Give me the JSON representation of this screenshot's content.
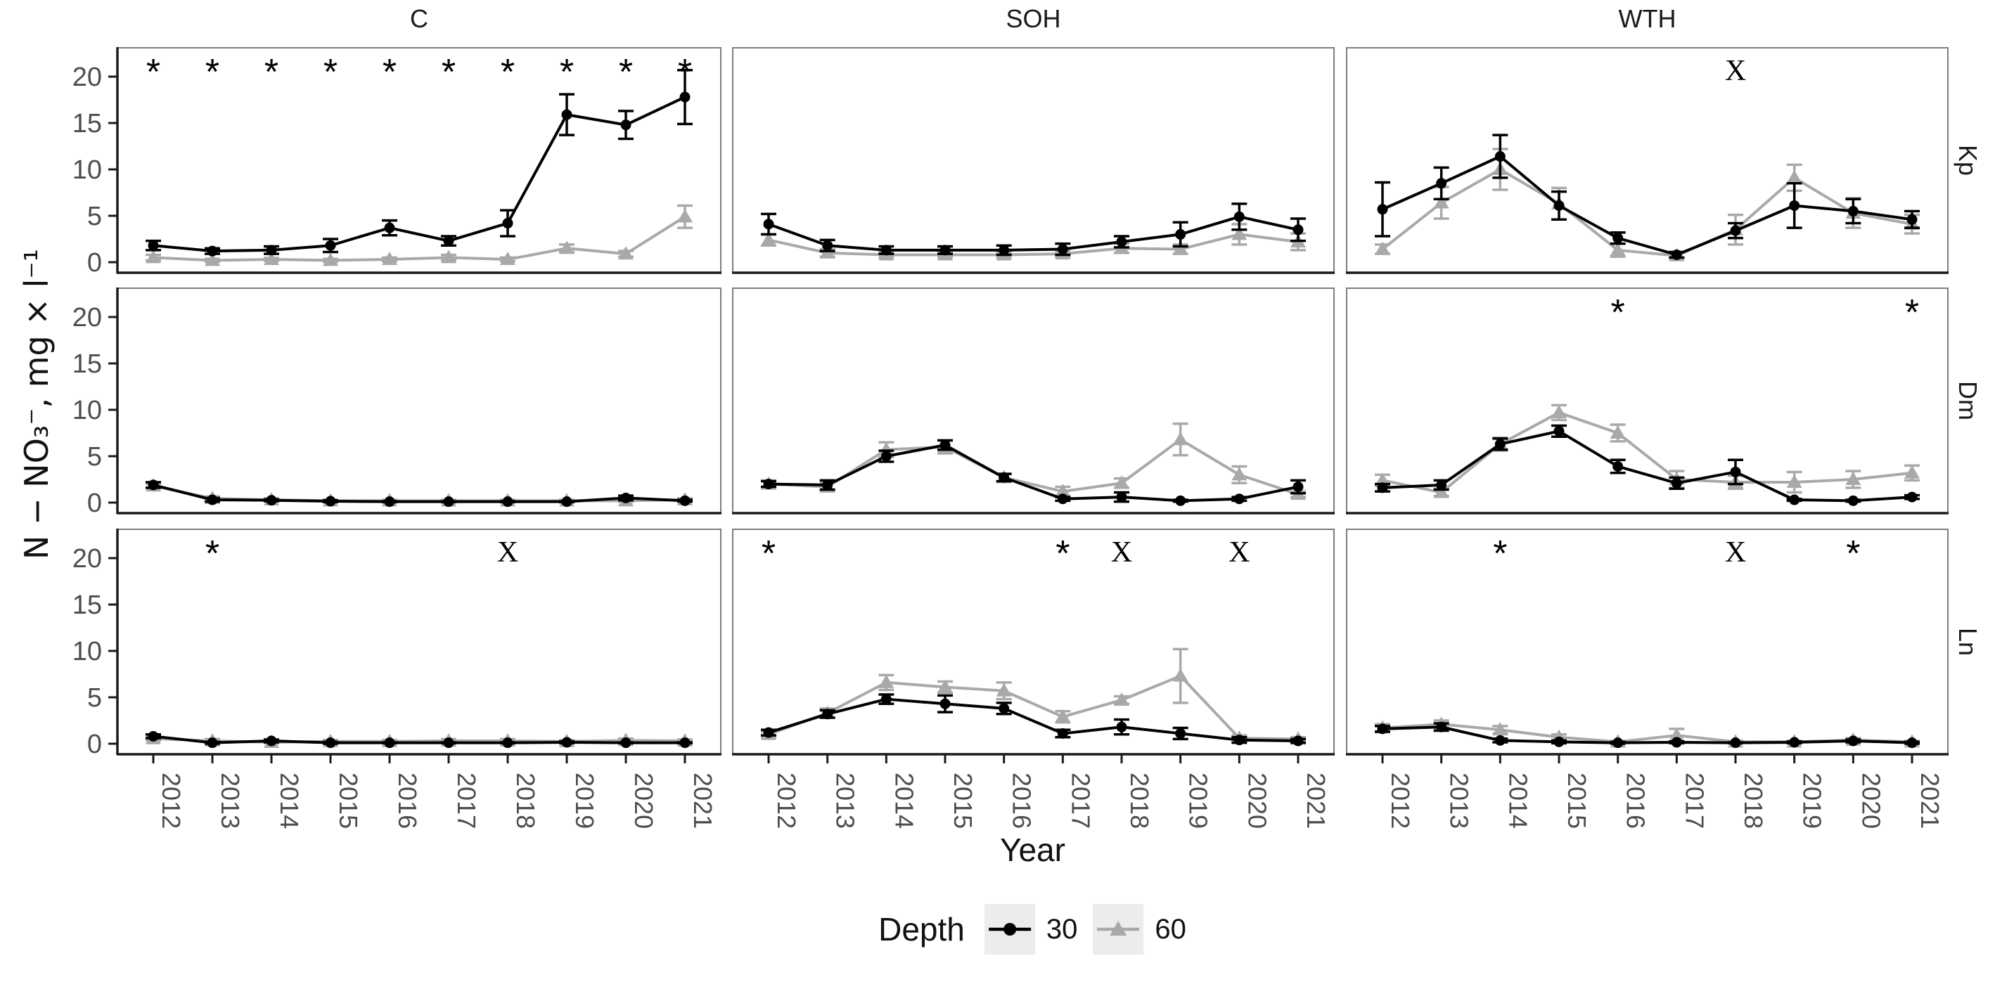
{
  "colors": {
    "depth30": "#000000",
    "depth60": "#a9a9a9",
    "axis_text": "#4d4d4d",
    "text": "#1a1a1a",
    "panel_border": "#7d7d7d",
    "axis_line": "#1a1a1a",
    "legend_key_bg": "#ececec",
    "background": "#ffffff"
  },
  "chart_data": {
    "type": "line",
    "title": "",
    "xlabel": "Year",
    "ylabel": "N − NO₃⁻, mg × l⁻¹",
    "x": [
      2012,
      2013,
      2014,
      2015,
      2016,
      2017,
      2018,
      2019,
      2020,
      2021
    ],
    "facet_columns": [
      "C",
      "SOH",
      "WTH"
    ],
    "facet_rows": [
      "Kp",
      "Dm",
      "Ln"
    ],
    "ylim": [
      0,
      22.5
    ],
    "yticks": [
      0,
      5,
      10,
      15,
      20
    ],
    "grid": "off",
    "legend": {
      "title": "Depth",
      "position": "bottom",
      "entries": [
        {
          "label": "30",
          "marker": "circle",
          "color": "#000000"
        },
        {
          "label": "60",
          "marker": "triangle",
          "color": "#a9a9a9"
        }
      ]
    },
    "error_bars": true,
    "significance_symbols": [
      "*",
      "x"
    ],
    "panels": [
      {
        "row": "Kp",
        "col": "C",
        "series": [
          {
            "name": "30",
            "mean": [
              1.8,
              1.2,
              1.3,
              1.8,
              3.7,
              2.3,
              4.2,
              15.9,
              14.8,
              17.8
            ],
            "err": [
              0.5,
              0.3,
              0.4,
              0.7,
              0.8,
              0.5,
              1.4,
              2.2,
              1.5,
              2.9
            ]
          },
          {
            "name": "60",
            "mean": [
              0.5,
              0.2,
              0.3,
              0.2,
              0.3,
              0.5,
              0.3,
              1.5,
              0.9,
              4.9
            ],
            "err": [
              0.3,
              0.15,
              0.15,
              0.15,
              0.2,
              0.3,
              0.2,
              0.4,
              0.3,
              1.2
            ]
          }
        ],
        "marks": [
          {
            "year": 2012,
            "symbol": "*"
          },
          {
            "year": 2013,
            "symbol": "*"
          },
          {
            "year": 2014,
            "symbol": "*"
          },
          {
            "year": 2015,
            "symbol": "*"
          },
          {
            "year": 2016,
            "symbol": "*"
          },
          {
            "year": 2017,
            "symbol": "*"
          },
          {
            "year": 2018,
            "symbol": "*"
          },
          {
            "year": 2019,
            "symbol": "*"
          },
          {
            "year": 2020,
            "symbol": "*"
          },
          {
            "year": 2021,
            "symbol": "*"
          }
        ]
      },
      {
        "row": "Kp",
        "col": "SOH",
        "series": [
          {
            "name": "30",
            "mean": [
              4.1,
              1.8,
              1.3,
              1.3,
              1.3,
              1.4,
              2.2,
              3.0,
              4.9,
              3.5
            ],
            "err": [
              1.1,
              0.6,
              0.4,
              0.4,
              0.5,
              0.6,
              0.6,
              1.3,
              1.4,
              1.2
            ]
          },
          {
            "name": "60",
            "mean": [
              2.4,
              1.0,
              0.8,
              0.8,
              0.8,
              0.9,
              1.5,
              1.4,
              3.0,
              2.2
            ],
            "err": [
              0.6,
              0.4,
              0.3,
              0.3,
              0.3,
              0.3,
              0.5,
              0.5,
              1.1,
              0.9
            ]
          }
        ],
        "marks": []
      },
      {
        "row": "Kp",
        "col": "WTH",
        "series": [
          {
            "name": "30",
            "mean": [
              5.7,
              8.5,
              11.4,
              6.1,
              2.6,
              0.8,
              3.4,
              6.1,
              5.5,
              4.6
            ],
            "err": [
              2.9,
              1.7,
              2.3,
              1.5,
              0.6,
              0.3,
              0.8,
              2.4,
              1.3,
              0.9
            ]
          },
          {
            "name": "60",
            "mean": [
              1.4,
              6.4,
              10.0,
              6.3,
              1.3,
              0.7,
              3.5,
              9.1,
              5.3,
              4.1
            ],
            "err": [
              0.5,
              1.7,
              2.2,
              1.7,
              0.7,
              0.3,
              1.6,
              1.4,
              1.6,
              1.0
            ]
          }
        ],
        "marks": [
          {
            "year": 2018,
            "symbol": "x"
          }
        ]
      },
      {
        "row": "Dm",
        "col": "C",
        "series": [
          {
            "name": "30",
            "mean": [
              1.9,
              0.3,
              0.25,
              0.15,
              0.1,
              0.1,
              0.1,
              0.1,
              0.5,
              0.2
            ],
            "err": [
              0.3,
              0.2,
              0.1,
              0.1,
              0.05,
              0.05,
              0.05,
              0.05,
              0.25,
              0.1
            ]
          },
          {
            "name": "60",
            "mean": [
              1.8,
              0.45,
              0.3,
              0.2,
              0.2,
              0.2,
              0.2,
              0.2,
              0.2,
              0.3
            ],
            "err": [
              0.25,
              0.2,
              0.15,
              0.1,
              0.1,
              0.1,
              0.1,
              0.1,
              0.1,
              0.15
            ]
          }
        ],
        "marks": []
      },
      {
        "row": "Dm",
        "col": "SOH",
        "series": [
          {
            "name": "30",
            "mean": [
              2.0,
              1.9,
              5.0,
              6.2,
              2.7,
              0.4,
              0.6,
              0.2,
              0.4,
              1.7
            ],
            "err": [
              0.3,
              0.5,
              0.6,
              0.5,
              0.4,
              0.2,
              0.5,
              0.1,
              0.2,
              0.7
            ]
          },
          {
            "name": "60",
            "mean": [
              2.0,
              1.7,
              5.7,
              6.0,
              2.7,
              1.2,
              2.1,
              6.8,
              3.0,
              0.9
            ],
            "err": [
              0.4,
              0.5,
              0.8,
              0.7,
              0.4,
              0.5,
              0.5,
              1.7,
              0.9,
              0.3
            ]
          }
        ],
        "marks": []
      },
      {
        "row": "Dm",
        "col": "WTH",
        "series": [
          {
            "name": "30",
            "mean": [
              1.6,
              1.9,
              6.3,
              7.7,
              3.9,
              2.1,
              3.3,
              0.3,
              0.2,
              0.6
            ],
            "err": [
              0.4,
              0.5,
              0.6,
              0.6,
              0.7,
              0.6,
              1.3,
              0.1,
              0.1,
              0.2
            ]
          },
          {
            "name": "60",
            "mean": [
              2.4,
              1.1,
              6.3,
              9.7,
              7.5,
              2.5,
              2.2,
              2.2,
              2.5,
              3.2
            ],
            "err": [
              0.6,
              0.4,
              0.7,
              0.8,
              0.9,
              0.9,
              0.7,
              1.1,
              0.9,
              0.8
            ]
          }
        ],
        "marks": [
          {
            "year": 2016,
            "symbol": "*"
          },
          {
            "year": 2021,
            "symbol": "*"
          }
        ]
      },
      {
        "row": "Ln",
        "col": "C",
        "series": [
          {
            "name": "30",
            "mean": [
              0.8,
              0.1,
              0.3,
              0.1,
              0.1,
              0.1,
              0.1,
              0.15,
              0.1,
              0.1
            ],
            "err": [
              0.2,
              0.1,
              0.15,
              0.1,
              0.05,
              0.05,
              0.05,
              0.1,
              0.05,
              0.05
            ]
          },
          {
            "name": "60",
            "mean": [
              0.55,
              0.3,
              0.15,
              0.25,
              0.25,
              0.3,
              0.3,
              0.25,
              0.35,
              0.3
            ],
            "err": [
              0.2,
              0.2,
              0.1,
              0.15,
              0.15,
              0.2,
              0.2,
              0.15,
              0.2,
              0.15
            ]
          }
        ],
        "marks": [
          {
            "year": 2013,
            "symbol": "*"
          },
          {
            "year": 2018,
            "symbol": "x"
          }
        ]
      },
      {
        "row": "Ln",
        "col": "SOH",
        "series": [
          {
            "name": "30",
            "mean": [
              1.2,
              3.2,
              4.8,
              4.3,
              3.8,
              1.1,
              1.8,
              1.1,
              0.4,
              0.3
            ],
            "err": [
              0.3,
              0.4,
              0.5,
              0.9,
              0.6,
              0.4,
              0.8,
              0.6,
              0.3,
              0.2
            ]
          },
          {
            "name": "60",
            "mean": [
              1.0,
              3.3,
              6.6,
              6.1,
              5.7,
              2.9,
              4.7,
              7.3,
              0.6,
              0.5
            ],
            "err": [
              0.3,
              0.5,
              0.8,
              0.6,
              0.9,
              0.6,
              0.4,
              2.9,
              0.3,
              0.2
            ]
          }
        ],
        "marks": [
          {
            "year": 2012,
            "symbol": "*"
          },
          {
            "year": 2017,
            "symbol": "*"
          },
          {
            "year": 2018,
            "symbol": "x"
          },
          {
            "year": 2020,
            "symbol": "x"
          }
        ]
      },
      {
        "row": "Ln",
        "col": "WTH",
        "series": [
          {
            "name": "30",
            "mean": [
              1.6,
              1.8,
              0.35,
              0.2,
              0.1,
              0.15,
              0.1,
              0.15,
              0.3,
              0.1
            ],
            "err": [
              0.3,
              0.4,
              0.2,
              0.15,
              0.1,
              0.1,
              0.05,
              0.1,
              0.15,
              0.1
            ]
          },
          {
            "name": "60",
            "mean": [
              1.7,
              2.1,
              1.5,
              0.7,
              0.2,
              0.9,
              0.2,
              0.2,
              0.4,
              0.2
            ],
            "err": [
              0.4,
              0.4,
              0.4,
              0.3,
              0.1,
              0.7,
              0.1,
              0.1,
              0.2,
              0.1
            ]
          }
        ],
        "marks": [
          {
            "year": 2014,
            "symbol": "*"
          },
          {
            "year": 2018,
            "symbol": "x"
          },
          {
            "year": 2020,
            "symbol": "*"
          }
        ]
      }
    ]
  }
}
